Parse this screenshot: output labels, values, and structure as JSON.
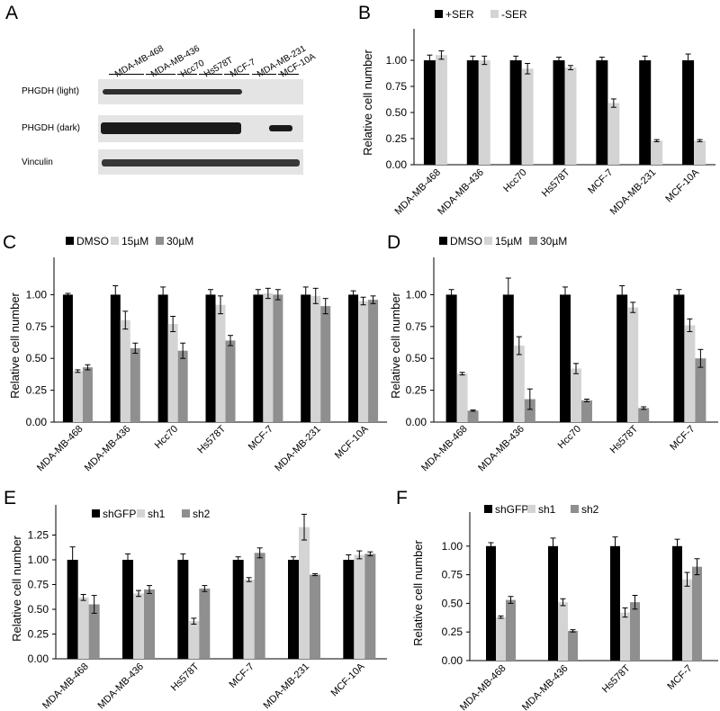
{
  "panels": {
    "A": {
      "letter": "A",
      "lanes": [
        "MDA-MB-468",
        "MDA-MB-436",
        "Hcc70",
        "Hs578T",
        "MCF-7",
        "MDA-MB-231",
        "MCF-10A"
      ],
      "blots": [
        "PHGDH (light)",
        "PHGDH (dark)",
        "Vinculin"
      ]
    },
    "B": {
      "letter": "B"
    },
    "C": {
      "letter": "C"
    },
    "D": {
      "letter": "D"
    },
    "E": {
      "letter": "E"
    },
    "F": {
      "letter": "F"
    }
  },
  "colors": {
    "series1": "#000000",
    "series2": "#d4d4d4",
    "series3": "#8f8f8f"
  },
  "chart_data": [
    {
      "panel": "B",
      "type": "bar",
      "categories": [
        "MDA-MB-468",
        "MDA-MB-436",
        "Hcc70",
        "Hs578T",
        "MCF-7",
        "MDA-MB-231",
        "MCF-10A"
      ],
      "series": [
        {
          "name": "+SER",
          "values": [
            1.0,
            1.0,
            1.0,
            1.0,
            1.0,
            1.0,
            1.0
          ],
          "errors": [
            0.05,
            0.04,
            0.04,
            0.03,
            0.03,
            0.04,
            0.06
          ]
        },
        {
          "name": "-SER",
          "values": [
            1.05,
            1.0,
            0.92,
            0.93,
            0.59,
            0.23,
            0.23
          ],
          "errors": [
            0.04,
            0.04,
            0.05,
            0.02,
            0.04,
            0.01,
            0.01
          ]
        }
      ],
      "ylabel": "Relative cell number",
      "ylim": [
        0,
        1.25
      ],
      "yticks": [
        "0.00",
        "0.25",
        "0.50",
        "0.75",
        "1.00"
      ],
      "legend": "top"
    },
    {
      "panel": "C",
      "type": "bar",
      "categories": [
        "MDA-MB-468",
        "MDA-MB-436",
        "Hcc70",
        "Hs578T",
        "MCF-7",
        "MDA-MB-231",
        "MCF-10A"
      ],
      "series": [
        {
          "name": "DMSO",
          "values": [
            1.0,
            1.0,
            1.0,
            1.0,
            1.0,
            1.0,
            1.0
          ],
          "errors": [
            0.01,
            0.07,
            0.06,
            0.04,
            0.04,
            0.06,
            0.03
          ]
        },
        {
          "name": "15µM",
          "values": [
            0.4,
            0.8,
            0.77,
            0.92,
            1.01,
            0.99,
            0.95
          ],
          "errors": [
            0.01,
            0.07,
            0.06,
            0.07,
            0.04,
            0.06,
            0.03
          ]
        },
        {
          "name": "30µM",
          "values": [
            0.43,
            0.58,
            0.56,
            0.64,
            1.0,
            0.91,
            0.96
          ],
          "errors": [
            0.02,
            0.04,
            0.06,
            0.04,
            0.04,
            0.06,
            0.03
          ]
        }
      ],
      "ylabel": "Relative cell number",
      "ylim": [
        0,
        1.25
      ],
      "yticks": [
        "0.00",
        "0.25",
        "0.50",
        "0.75",
        "1.00"
      ],
      "legend": "top"
    },
    {
      "panel": "D",
      "type": "bar",
      "categories": [
        "MDA-MB-468",
        "MDA-MB-436",
        "Hcc70",
        "Hs578T",
        "MCF-7"
      ],
      "series": [
        {
          "name": "DMSO",
          "values": [
            1.0,
            1.0,
            1.0,
            1.0,
            1.0
          ],
          "errors": [
            0.04,
            0.13,
            0.06,
            0.07,
            0.04
          ]
        },
        {
          "name": "15µM",
          "values": [
            0.38,
            0.6,
            0.42,
            0.9,
            0.76
          ],
          "errors": [
            0.01,
            0.07,
            0.04,
            0.04,
            0.05
          ]
        },
        {
          "name": "30µM",
          "values": [
            0.09,
            0.18,
            0.17,
            0.11,
            0.5
          ],
          "errors": [
            0.005,
            0.08,
            0.01,
            0.01,
            0.07
          ]
        }
      ],
      "ylabel": "Relative cell number",
      "ylim": [
        0,
        1.25
      ],
      "yticks": [
        "0.00",
        "0.25",
        "0.50",
        "0.75",
        "1.00"
      ],
      "legend": "top"
    },
    {
      "panel": "E",
      "type": "bar",
      "categories": [
        "MDA-MB-468",
        "MDA-MB-436",
        "Hs578T",
        "MCF-7",
        "MDA-MB-231",
        "MCF-10A"
      ],
      "series": [
        {
          "name": "shGFP",
          "values": [
            1.0,
            1.0,
            1.0,
            1.0,
            1.0,
            1.0
          ],
          "errors": [
            0.13,
            0.06,
            0.06,
            0.03,
            0.03,
            0.05
          ]
        },
        {
          "name": "sh1",
          "values": [
            0.62,
            0.66,
            0.38,
            0.8,
            1.33,
            1.05
          ],
          "errors": [
            0.03,
            0.03,
            0.03,
            0.02,
            0.13,
            0.04
          ]
        },
        {
          "name": "sh2",
          "values": [
            0.55,
            0.7,
            0.71,
            1.07,
            0.85,
            1.06
          ],
          "errors": [
            0.09,
            0.04,
            0.03,
            0.05,
            0.01,
            0.02
          ]
        }
      ],
      "ylabel": "Relative cell number",
      "ylim": [
        0,
        1.5
      ],
      "yticks": [
        "0.00",
        "0.25",
        "0.50",
        "0.75",
        "1.00",
        "1.25"
      ],
      "legend": "top"
    },
    {
      "panel": "F",
      "type": "bar",
      "categories": [
        "MDA-MB-468",
        "MDA-MB-436",
        "Hs578T",
        "MCF-7"
      ],
      "series": [
        {
          "name": "shGFP",
          "values": [
            1.0,
            1.0,
            1.0,
            1.0
          ],
          "errors": [
            0.03,
            0.07,
            0.08,
            0.06
          ]
        },
        {
          "name": "sh1",
          "values": [
            0.38,
            0.51,
            0.42,
            0.71
          ],
          "errors": [
            0.01,
            0.03,
            0.04,
            0.06
          ]
        },
        {
          "name": "sh2",
          "values": [
            0.53,
            0.26,
            0.51,
            0.82
          ],
          "errors": [
            0.03,
            0.01,
            0.06,
            0.07
          ]
        }
      ],
      "ylabel": "Relative cell number",
      "ylim": [
        0,
        1.25
      ],
      "yticks": [
        "0.00",
        "0.25",
        "0.50",
        "0.75",
        "1.00"
      ],
      "legend": "top"
    }
  ]
}
